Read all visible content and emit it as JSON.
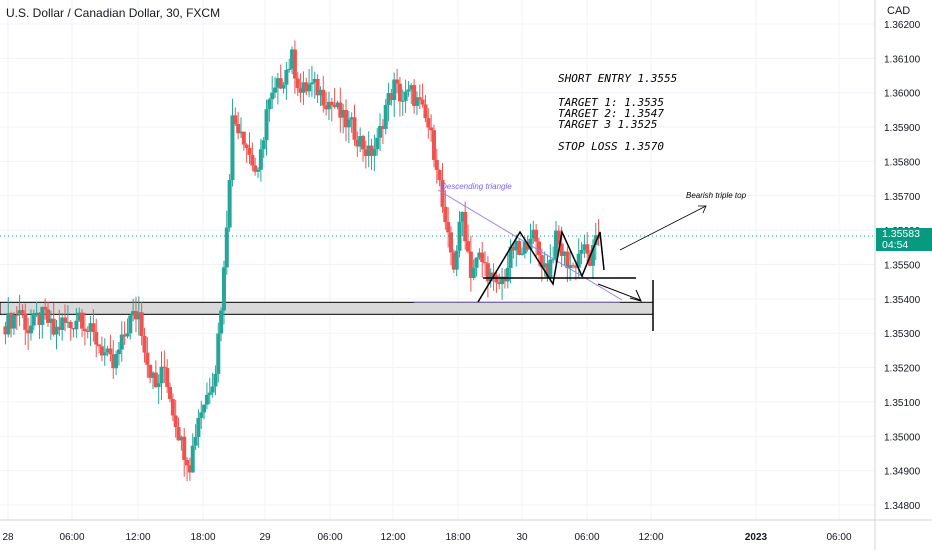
{
  "title": "U.S. Dollar / Canadian Dollar, 30, FXCM",
  "currency": "CAD",
  "colors": {
    "up": "#26a69a",
    "down": "#ef5350",
    "badge": "#089981",
    "annotation_line": "#000000",
    "triangle_line": "#9c7ff0"
  },
  "annotations": {
    "short_entry": "SHORT ENTRY 1.3555",
    "target1": "TARGET 1: 1.3535",
    "target2": "TARGET 2: 1.3547",
    "target3": "TARGET 3 1.3525",
    "stop_loss": "STOP LOSS 1.3570",
    "triangle": "Descending triangle",
    "triple_top": "Bearish triple top"
  },
  "price_badge": {
    "price": "1.35583",
    "countdown": "04:54"
  },
  "chart_data": {
    "type": "candlestick",
    "title": "U.S. Dollar / Canadian Dollar, 30, FXCM",
    "y_ticks": [
      "1.36200",
      "1.36100",
      "1.36000",
      "1.35900",
      "1.35800",
      "1.35700",
      "1.35600",
      "1.35500",
      "1.35400",
      "1.35300",
      "1.35200",
      "1.35100",
      "1.35000",
      "1.34900",
      "1.34800"
    ],
    "x_ticks": [
      "28",
      "06:00",
      "12:00",
      "18:00",
      "29",
      "06:00",
      "12:00",
      "18:00",
      "30",
      "06:00",
      "12:00",
      "2023",
      "06:00"
    ],
    "ylim": [
      1.3475,
      1.3625
    ],
    "last_price": 1.35583,
    "support_zone": [
      1.35365,
      1.35385
    ],
    "series_ohlc_close_path": [
      1.3532,
      1.3534,
      1.3537,
      1.3531,
      1.3534,
      1.3535,
      1.353,
      1.3533,
      1.3532,
      1.3536,
      1.3531,
      1.3528,
      1.3524,
      1.352,
      1.3527,
      1.3534,
      1.3536,
      1.3522,
      1.3514,
      1.352,
      1.3508,
      1.3498,
      1.3492,
      1.3506,
      1.3512,
      1.352,
      1.3548,
      1.3592,
      1.359,
      1.3582,
      1.3575,
      1.3595,
      1.36,
      1.3605,
      1.361,
      1.36,
      1.3602,
      1.3601,
      1.3598,
      1.3596,
      1.3592,
      1.359,
      1.3586,
      1.3582,
      1.3585,
      1.3596,
      1.3602,
      1.3598,
      1.36,
      1.3596,
      1.359,
      1.358,
      1.356,
      1.355,
      1.3565,
      1.3548,
      1.3552,
      1.3548,
      1.3543,
      1.3547,
      1.3555,
      1.3552,
      1.356,
      1.3553,
      1.3548,
      1.3557,
      1.3552,
      1.3549,
      1.3555,
      1.3551,
      1.3558
    ]
  }
}
